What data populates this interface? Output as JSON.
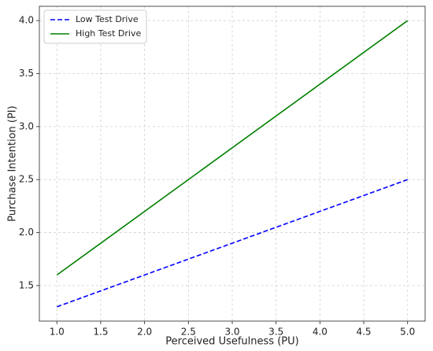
{
  "chart_data": {
    "type": "line",
    "x_label": "Perceived Usefulness (PU)",
    "y_label": "Purchase Intention (PI)",
    "x": [
      1.0,
      5.0
    ],
    "series": [
      {
        "name": "Low Test Drive",
        "color": "#0000ff",
        "dashed": true,
        "values": [
          1.3,
          2.5
        ]
      },
      {
        "name": "High Test Drive",
        "color": "#008000",
        "dashed": false,
        "values": [
          1.6,
          4.0
        ]
      }
    ],
    "xlim": [
      0.8,
      5.2
    ],
    "ylim": [
      1.165,
      4.135
    ],
    "xticks": [
      {
        "value": 1,
        "label": "1.0"
      },
      1.5,
      {
        "value": 2,
        "label": "2.0"
      },
      2.5,
      {
        "value": 3,
        "label": "3.0"
      },
      3.5,
      {
        "value": 4,
        "label": "4.0"
      },
      4.5,
      {
        "value": 5,
        "label": "5.0"
      }
    ],
    "yticks": [
      1.5,
      {
        "value": 2,
        "label": "2.0"
      },
      2.5,
      {
        "value": 3,
        "label": "3.0"
      },
      3.5,
      {
        "value": 4,
        "label": "4.0"
      }
    ],
    "grid": true,
    "legend": "upper-left"
  }
}
